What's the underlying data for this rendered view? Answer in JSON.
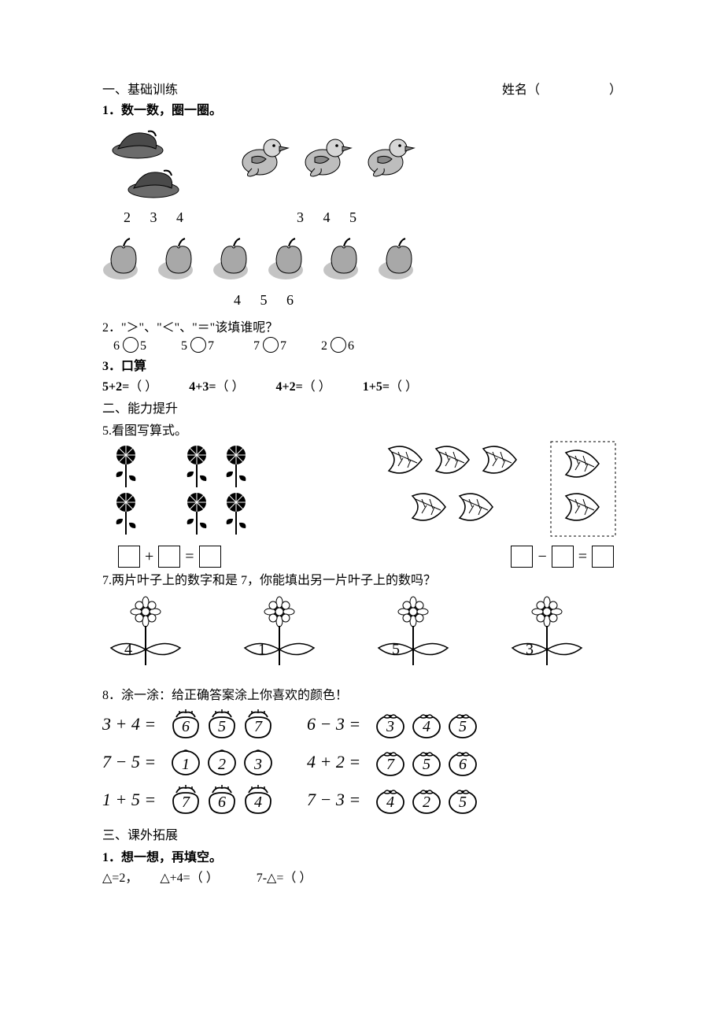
{
  "header": {
    "section1": "一、基础训练",
    "name_label": "姓名（",
    "name_close": "）"
  },
  "q1": {
    "title": "1．数一数，圈一圈。",
    "row1a_nums": "2  3  4",
    "row1b_nums": "3  4  5",
    "row2_nums": "4  5  6"
  },
  "q2": {
    "title": "2．\"＞\"、\"＜\"、\"＝\"该填谁呢？",
    "pairs": [
      {
        "a": "6",
        "b": "5"
      },
      {
        "a": "5",
        "b": "7"
      },
      {
        "a": "7",
        "b": "7"
      },
      {
        "a": "2",
        "b": "6"
      }
    ]
  },
  "q3": {
    "title": "3．口算",
    "items": [
      "5+2=",
      "4+3=",
      "4+2=",
      "1+5="
    ],
    "paren": "（   ）"
  },
  "sec2": "二、能力提升",
  "q5": {
    "title": "5.看图写算式。",
    "op_plus": "+",
    "op_eq": "=",
    "op_minus": "−"
  },
  "q7": {
    "title": "7.两片叶子上的数字和是 7，你能填出另一片叶子上的数吗？",
    "vals": [
      "4",
      "1",
      "5",
      "3"
    ]
  },
  "q8": {
    "title": "8．涂一涂：给正确答案涂上你喜欢的颜色！",
    "rows": [
      {
        "left_eq": "3 + 4 =",
        "left_opts": [
          "6",
          "5",
          "7"
        ],
        "left_shape": "acorn",
        "right_eq": "6 − 3 =",
        "right_opts": [
          "3",
          "4",
          "5"
        ],
        "right_shape": "tomato"
      },
      {
        "left_eq": "7 − 5 =",
        "left_opts": [
          "1",
          "2",
          "3"
        ],
        "left_shape": "plain",
        "right_eq": "4 + 2 =",
        "right_opts": [
          "7",
          "5",
          "6"
        ],
        "right_shape": "tomato"
      },
      {
        "left_eq": "1 + 5 =",
        "left_opts": [
          "7",
          "6",
          "4"
        ],
        "left_shape": "acorn",
        "right_eq": "7 − 3 =",
        "right_opts": [
          "4",
          "2",
          "5"
        ],
        "right_shape": "tomato"
      }
    ]
  },
  "sec3": "三、课外拓展",
  "q_ext": {
    "title": "1．想一想，再填空。",
    "line_a": "△=2，",
    "line_b": "△+4=（    ）",
    "line_c": "7-△=（    ）"
  },
  "colors": {
    "ink": "#000000",
    "gray": "#555555",
    "lightgray": "#9a9a9a",
    "bg": "#ffffff"
  }
}
